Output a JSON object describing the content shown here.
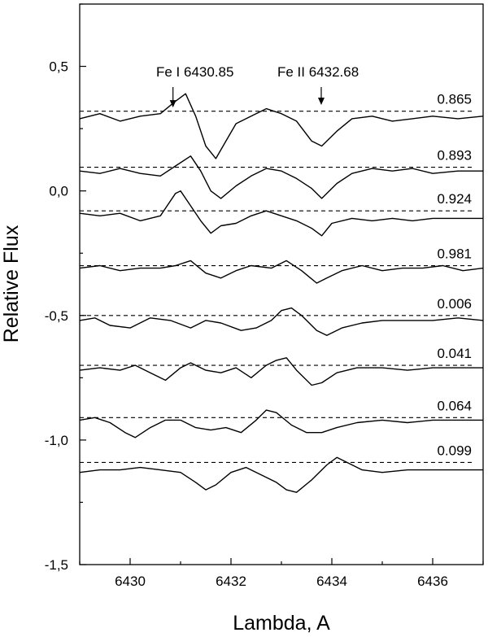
{
  "chart_data": {
    "type": "line",
    "title": "",
    "xlabel": "Lambda, A",
    "ylabel": "Relative Flux",
    "xlim": [
      6429,
      6437
    ],
    "ylim": [
      -1.5,
      0.75
    ],
    "x_ticks": [
      6430,
      6432,
      6434,
      6436
    ],
    "x_tick_labels": [
      "6430",
      "6432",
      "6434",
      "6436"
    ],
    "y_ticks": [
      0.5,
      0.0,
      -0.5,
      -1.0,
      -1.5
    ],
    "y_tick_labels": [
      "0,5",
      "0,0",
      "-0,5",
      "-1,0",
      "-1,5"
    ],
    "legend": "none",
    "grid": false,
    "annotations": [
      {
        "text": "Fe I 6430.85",
        "x": 6430.85,
        "arrow_tip_y": 0.335
      },
      {
        "text": "Fe II 6432.68",
        "x": 6433.79,
        "arrow_tip_y": 0.345
      }
    ],
    "series": [
      {
        "name": "0.865",
        "continuum": 0.32,
        "points": [
          [
            6429.0,
            0.29
          ],
          [
            6429.4,
            0.31
          ],
          [
            6429.8,
            0.28
          ],
          [
            6430.2,
            0.3
          ],
          [
            6430.6,
            0.31
          ],
          [
            6430.9,
            0.36
          ],
          [
            6431.1,
            0.39
          ],
          [
            6431.3,
            0.3
          ],
          [
            6431.5,
            0.18
          ],
          [
            6431.7,
            0.13
          ],
          [
            6431.9,
            0.2
          ],
          [
            6432.1,
            0.27
          ],
          [
            6432.4,
            0.3
          ],
          [
            6432.7,
            0.33
          ],
          [
            6433.0,
            0.31
          ],
          [
            6433.3,
            0.28
          ],
          [
            6433.6,
            0.2
          ],
          [
            6433.8,
            0.18
          ],
          [
            6434.1,
            0.24
          ],
          [
            6434.4,
            0.29
          ],
          [
            6434.8,
            0.3
          ],
          [
            6435.2,
            0.28
          ],
          [
            6435.6,
            0.29
          ],
          [
            6436.0,
            0.3
          ],
          [
            6436.5,
            0.29
          ],
          [
            6437.0,
            0.3
          ]
        ]
      },
      {
        "name": "0.893",
        "continuum": 0.095,
        "points": [
          [
            6429.0,
            0.08
          ],
          [
            6429.4,
            0.07
          ],
          [
            6429.8,
            0.09
          ],
          [
            6430.2,
            0.07
          ],
          [
            6430.6,
            0.06
          ],
          [
            6430.9,
            0.1
          ],
          [
            6431.2,
            0.14
          ],
          [
            6431.4,
            0.08
          ],
          [
            6431.6,
            0.0
          ],
          [
            6431.8,
            -0.03
          ],
          [
            6432.1,
            0.02
          ],
          [
            6432.4,
            0.06
          ],
          [
            6432.7,
            0.09
          ],
          [
            6433.0,
            0.08
          ],
          [
            6433.3,
            0.05
          ],
          [
            6433.6,
            0.01
          ],
          [
            6433.8,
            -0.03
          ],
          [
            6434.1,
            0.03
          ],
          [
            6434.4,
            0.07
          ],
          [
            6434.8,
            0.09
          ],
          [
            6435.2,
            0.08
          ],
          [
            6435.6,
            0.09
          ],
          [
            6436.0,
            0.07
          ],
          [
            6436.5,
            0.08
          ],
          [
            6437.0,
            0.08
          ]
        ]
      },
      {
        "name": "0.924",
        "continuum": -0.08,
        "points": [
          [
            6429.0,
            -0.09
          ],
          [
            6429.4,
            -0.1
          ],
          [
            6429.8,
            -0.09
          ],
          [
            6430.2,
            -0.12
          ],
          [
            6430.6,
            -0.1
          ],
          [
            6430.9,
            -0.01
          ],
          [
            6431.0,
            0.0
          ],
          [
            6431.2,
            -0.06
          ],
          [
            6431.4,
            -0.12
          ],
          [
            6431.6,
            -0.17
          ],
          [
            6431.8,
            -0.14
          ],
          [
            6432.1,
            -0.13
          ],
          [
            6432.4,
            -0.1
          ],
          [
            6432.7,
            -0.08
          ],
          [
            6433.0,
            -0.1
          ],
          [
            6433.3,
            -0.12
          ],
          [
            6433.6,
            -0.15
          ],
          [
            6433.8,
            -0.18
          ],
          [
            6434.0,
            -0.13
          ],
          [
            6434.4,
            -0.11
          ],
          [
            6434.8,
            -0.12
          ],
          [
            6435.2,
            -0.11
          ],
          [
            6435.6,
            -0.12
          ],
          [
            6436.0,
            -0.11
          ],
          [
            6436.5,
            -0.11
          ],
          [
            6437.0,
            -0.11
          ]
        ]
      },
      {
        "name": "0.981",
        "continuum": -0.3,
        "points": [
          [
            6429.0,
            -0.31
          ],
          [
            6429.4,
            -0.3
          ],
          [
            6429.8,
            -0.32
          ],
          [
            6430.2,
            -0.31
          ],
          [
            6430.6,
            -0.31
          ],
          [
            6430.9,
            -0.3
          ],
          [
            6431.2,
            -0.28
          ],
          [
            6431.5,
            -0.33
          ],
          [
            6431.8,
            -0.35
          ],
          [
            6432.1,
            -0.32
          ],
          [
            6432.4,
            -0.3
          ],
          [
            6432.8,
            -0.31
          ],
          [
            6433.1,
            -0.28
          ],
          [
            6433.4,
            -0.32
          ],
          [
            6433.7,
            -0.37
          ],
          [
            6433.9,
            -0.35
          ],
          [
            6434.2,
            -0.32
          ],
          [
            6434.6,
            -0.3
          ],
          [
            6435.0,
            -0.32
          ],
          [
            6435.4,
            -0.31
          ],
          [
            6435.8,
            -0.31
          ],
          [
            6436.2,
            -0.3
          ],
          [
            6436.6,
            -0.32
          ],
          [
            6437.0,
            -0.31
          ]
        ]
      },
      {
        "name": "0.006",
        "continuum": -0.5,
        "points": [
          [
            6429.0,
            -0.52
          ],
          [
            6429.3,
            -0.51
          ],
          [
            6429.6,
            -0.54
          ],
          [
            6430.0,
            -0.55
          ],
          [
            6430.4,
            -0.51
          ],
          [
            6430.8,
            -0.52
          ],
          [
            6431.2,
            -0.55
          ],
          [
            6431.5,
            -0.52
          ],
          [
            6431.8,
            -0.53
          ],
          [
            6432.2,
            -0.56
          ],
          [
            6432.5,
            -0.55
          ],
          [
            6432.8,
            -0.52
          ],
          [
            6433.0,
            -0.48
          ],
          [
            6433.2,
            -0.47
          ],
          [
            6433.4,
            -0.5
          ],
          [
            6433.7,
            -0.56
          ],
          [
            6433.9,
            -0.58
          ],
          [
            6434.2,
            -0.55
          ],
          [
            6434.6,
            -0.53
          ],
          [
            6435.0,
            -0.52
          ],
          [
            6435.5,
            -0.52
          ],
          [
            6436.0,
            -0.52
          ],
          [
            6436.5,
            -0.51
          ],
          [
            6437.0,
            -0.52
          ]
        ]
      },
      {
        "name": "0.041",
        "continuum": -0.7,
        "points": [
          [
            6429.0,
            -0.72
          ],
          [
            6429.4,
            -0.71
          ],
          [
            6429.8,
            -0.72
          ],
          [
            6430.1,
            -0.7
          ],
          [
            6430.4,
            -0.73
          ],
          [
            6430.7,
            -0.76
          ],
          [
            6431.0,
            -0.71
          ],
          [
            6431.2,
            -0.69
          ],
          [
            6431.5,
            -0.72
          ],
          [
            6431.8,
            -0.73
          ],
          [
            6432.1,
            -0.71
          ],
          [
            6432.4,
            -0.75
          ],
          [
            6432.7,
            -0.7
          ],
          [
            6432.9,
            -0.68
          ],
          [
            6433.1,
            -0.67
          ],
          [
            6433.3,
            -0.72
          ],
          [
            6433.6,
            -0.78
          ],
          [
            6433.8,
            -0.77
          ],
          [
            6434.1,
            -0.73
          ],
          [
            6434.5,
            -0.71
          ],
          [
            6435.0,
            -0.71
          ],
          [
            6435.5,
            -0.72
          ],
          [
            6436.0,
            -0.71
          ],
          [
            6436.5,
            -0.71
          ],
          [
            6437.0,
            -0.71
          ]
        ]
      },
      {
        "name": "0.064",
        "continuum": -0.91,
        "points": [
          [
            6429.0,
            -0.92
          ],
          [
            6429.3,
            -0.91
          ],
          [
            6429.6,
            -0.93
          ],
          [
            6429.9,
            -0.97
          ],
          [
            6430.1,
            -0.99
          ],
          [
            6430.4,
            -0.95
          ],
          [
            6430.7,
            -0.92
          ],
          [
            6431.0,
            -0.92
          ],
          [
            6431.3,
            -0.95
          ],
          [
            6431.6,
            -0.96
          ],
          [
            6431.9,
            -0.95
          ],
          [
            6432.2,
            -0.97
          ],
          [
            6432.5,
            -0.92
          ],
          [
            6432.7,
            -0.88
          ],
          [
            6432.9,
            -0.89
          ],
          [
            6433.2,
            -0.94
          ],
          [
            6433.5,
            -0.97
          ],
          [
            6433.8,
            -0.97
          ],
          [
            6434.1,
            -0.95
          ],
          [
            6434.5,
            -0.93
          ],
          [
            6435.0,
            -0.92
          ],
          [
            6435.5,
            -0.93
          ],
          [
            6436.0,
            -0.92
          ],
          [
            6436.5,
            -0.92
          ],
          [
            6437.0,
            -0.92
          ]
        ]
      },
      {
        "name": "0.099",
        "continuum": -1.09,
        "points": [
          [
            6429.0,
            -1.13
          ],
          [
            6429.4,
            -1.12
          ],
          [
            6429.8,
            -1.12
          ],
          [
            6430.2,
            -1.11
          ],
          [
            6430.6,
            -1.12
          ],
          [
            6431.0,
            -1.13
          ],
          [
            6431.3,
            -1.17
          ],
          [
            6431.5,
            -1.2
          ],
          [
            6431.7,
            -1.18
          ],
          [
            6432.0,
            -1.13
          ],
          [
            6432.3,
            -1.11
          ],
          [
            6432.6,
            -1.14
          ],
          [
            6432.9,
            -1.17
          ],
          [
            6433.1,
            -1.2
          ],
          [
            6433.3,
            -1.21
          ],
          [
            6433.6,
            -1.16
          ],
          [
            6433.9,
            -1.1
          ],
          [
            6434.1,
            -1.07
          ],
          [
            6434.3,
            -1.09
          ],
          [
            6434.6,
            -1.12
          ],
          [
            6435.0,
            -1.13
          ],
          [
            6435.5,
            -1.12
          ],
          [
            6436.0,
            -1.12
          ],
          [
            6436.5,
            -1.12
          ],
          [
            6437.0,
            -1.12
          ]
        ]
      }
    ]
  }
}
